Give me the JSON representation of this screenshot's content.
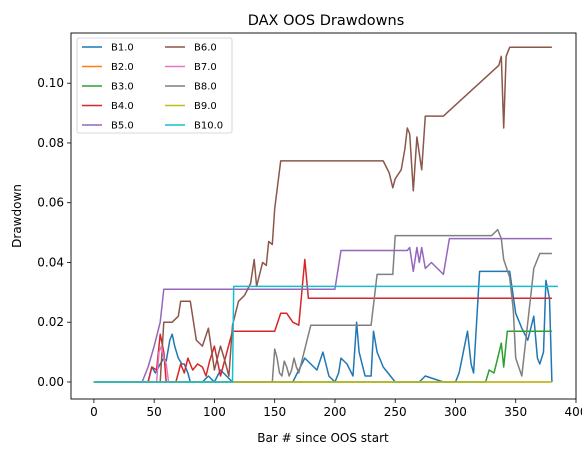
{
  "chart_data": {
    "type": "line",
    "title": "DAX OOS Drawdowns",
    "xlabel": "Bar # since OOS start",
    "ylabel": "Drawdown",
    "xlim": [
      -19,
      400
    ],
    "ylim": [
      -0.0057,
      0.1168
    ],
    "xticks": [
      0,
      50,
      100,
      150,
      200,
      250,
      300,
      350,
      400
    ],
    "xtick_labels": [
      "0",
      "50",
      "100",
      "150",
      "200",
      "250",
      "300",
      "350",
      "400"
    ],
    "yticks": [
      0.0,
      0.02,
      0.04,
      0.06,
      0.08,
      0.1
    ],
    "ytick_labels": [
      "0.00",
      "0.02",
      "0.04",
      "0.06",
      "0.08",
      "0.10"
    ],
    "grid": false,
    "legend_position": "upper-left",
    "legend_columns": 2,
    "series": [
      {
        "name": "B1.0",
        "color": "#1f77b4",
        "x": [
          0,
          45,
          48,
          51,
          55,
          58,
          60,
          63,
          65,
          67,
          70,
          73,
          75,
          78,
          80,
          90,
          95,
          100,
          105,
          115,
          150,
          165,
          170,
          175,
          180,
          185,
          190,
          195,
          200,
          203,
          205,
          210,
          215,
          218,
          220,
          225,
          230,
          232,
          235,
          240,
          250,
          270,
          275,
          290,
          300,
          303,
          305,
          308,
          310,
          313,
          315,
          320,
          330,
          340,
          345,
          350,
          355,
          360,
          365,
          368,
          370,
          373,
          375,
          378,
          380
        ],
        "y": [
          0,
          0,
          0.005,
          0.003,
          0.006,
          0.008,
          0.007,
          0.014,
          0.016,
          0.012,
          0.008,
          0.006,
          0.006,
          0.003,
          0,
          0,
          0.002,
          0,
          0.004,
          0,
          0,
          0,
          0.004,
          0.008,
          0.006,
          0.004,
          0.01,
          0.002,
          0,
          0.003,
          0.008,
          0.006,
          0.002,
          0.02,
          0.01,
          0.002,
          0.002,
          0.017,
          0.01,
          0.005,
          0,
          0,
          0.002,
          0,
          0,
          0.003,
          0.007,
          0.013,
          0.017,
          0.006,
          0.003,
          0.037,
          0.037,
          0.037,
          0.037,
          0.023,
          0.018,
          0.014,
          0.022,
          0.008,
          0.006,
          0.01,
          0.034,
          0.028,
          0
        ]
      },
      {
        "name": "B2.0",
        "color": "#ff7f0e",
        "x": [
          0,
          380
        ],
        "y": [
          0,
          0
        ]
      },
      {
        "name": "B3.0",
        "color": "#2ca02c",
        "x": [
          0,
          325,
          328,
          332,
          335,
          338,
          340,
          343,
          380
        ],
        "y": [
          0,
          0,
          0.004,
          0.003,
          0.008,
          0.013,
          0.005,
          0.017,
          0.017
        ]
      },
      {
        "name": "B4.0",
        "color": "#d62728",
        "x": [
          0,
          45,
          48,
          52,
          55,
          58,
          60,
          68,
          72,
          75,
          78,
          82,
          86,
          90,
          93,
          96,
          100,
          105,
          115,
          150,
          155,
          160,
          165,
          170,
          175,
          178,
          182,
          190,
          340,
          380
        ],
        "y": [
          0,
          0,
          0.005,
          0.004,
          0.016,
          0.01,
          0,
          0,
          0.006,
          0.003,
          0.008,
          0.004,
          0.006,
          0.005,
          0.002,
          0.007,
          0.012,
          0.002,
          0.017,
          0.017,
          0.023,
          0.023,
          0.02,
          0.019,
          0.041,
          0.028,
          0.028,
          0.028,
          0.028,
          0.028
        ]
      },
      {
        "name": "B5.0",
        "color": "#9467bd",
        "x": [
          0,
          40,
          45,
          50,
          55,
          58,
          60,
          65,
          70,
          75,
          80,
          85,
          90,
          95,
          100,
          102,
          105,
          110,
          115,
          120,
          125,
          130,
          135,
          140,
          145,
          150,
          160,
          200,
          205,
          210,
          215,
          220,
          225,
          230,
          235,
          240,
          245,
          250,
          255,
          258,
          260,
          262,
          265,
          268,
          270,
          272,
          275,
          280,
          285,
          290,
          295,
          300,
          305,
          310,
          315,
          320,
          325,
          330,
          335,
          340,
          345,
          350,
          355,
          360,
          365,
          370,
          375,
          380
        ],
        "y": [
          0,
          0,
          0.005,
          0.012,
          0.02,
          0.031,
          0.031,
          0.031,
          0.031,
          0.031,
          0.031,
          0.031,
          0.031,
          0.031,
          0.031,
          0.031,
          0.031,
          0.031,
          0.031,
          0.031,
          0.031,
          0.031,
          0.031,
          0.031,
          0.031,
          0.031,
          0.031,
          0.031,
          0.044,
          0.044,
          0.044,
          0.044,
          0.044,
          0.044,
          0.044,
          0.044,
          0.044,
          0.044,
          0.044,
          0.044,
          0.044,
          0.045,
          0.037,
          0.045,
          0.04,
          0.045,
          0.038,
          0.04,
          0.038,
          0.036,
          0.048,
          0.048,
          0.048,
          0.048,
          0.048,
          0.048,
          0.048,
          0.048,
          0.048,
          0.048,
          0.048,
          0.048,
          0.048,
          0.048,
          0.048,
          0.048,
          0.048,
          0.048
        ]
      },
      {
        "name": "B6.0",
        "color": "#8c564b",
        "x": [
          0,
          55,
          58,
          60,
          65,
          70,
          72,
          75,
          80,
          85,
          90,
          95,
          100,
          105,
          108,
          112,
          115,
          120,
          125,
          130,
          133,
          135,
          140,
          143,
          145,
          148,
          150,
          155,
          200,
          240,
          245,
          248,
          250,
          255,
          258,
          260,
          262,
          265,
          268,
          272,
          275,
          280,
          285,
          290,
          336,
          338,
          340,
          342,
          345,
          348,
          350,
          380
        ],
        "y": [
          0,
          0,
          0.02,
          0.02,
          0.02,
          0.022,
          0.027,
          0.027,
          0.027,
          0.014,
          0.012,
          0.018,
          0.004,
          0.012,
          0.008,
          0.002,
          0.019,
          0.027,
          0.029,
          0.033,
          0.041,
          0.032,
          0.04,
          0.039,
          0.047,
          0.046,
          0.058,
          0.074,
          0.074,
          0.074,
          0.07,
          0.065,
          0.068,
          0.071,
          0.078,
          0.085,
          0.083,
          0.064,
          0.082,
          0.071,
          0.089,
          0.089,
          0.089,
          0.089,
          0.106,
          0.109,
          0.085,
          0.109,
          0.112,
          0.112,
          0.112,
          0.112
        ]
      },
      {
        "name": "B7.0",
        "color": "#e377c2",
        "x": [
          0,
          52,
          54,
          56,
          58,
          60,
          62,
          64
        ],
        "y": [
          0,
          0,
          0.01,
          0.012,
          0.008,
          0.006,
          0,
          0
        ]
      },
      {
        "name": "B8.0",
        "color": "#7f7f7f",
        "x": [
          0,
          148,
          150,
          152,
          154,
          156,
          158,
          160,
          162,
          164,
          166,
          168,
          170,
          180,
          185,
          190,
          195,
          200,
          205,
          210,
          230,
          235,
          240,
          245,
          248,
          250,
          255,
          258,
          260,
          262,
          265,
          268,
          270,
          275,
          280,
          285,
          290,
          295,
          300,
          305,
          310,
          315,
          320,
          330,
          335,
          338,
          340,
          345,
          348,
          350,
          355,
          360,
          365,
          370,
          375,
          380
        ],
        "y": [
          0,
          0,
          0.011,
          0.008,
          0.003,
          0.002,
          0.007,
          0.005,
          0.002,
          0.004,
          0.008,
          0.005,
          0.003,
          0.019,
          0.019,
          0.019,
          0.019,
          0.019,
          0.019,
          0.019,
          0.019,
          0.036,
          0.036,
          0.036,
          0.036,
          0.049,
          0.049,
          0.049,
          0.049,
          0.049,
          0.049,
          0.049,
          0.049,
          0.049,
          0.049,
          0.049,
          0.049,
          0.049,
          0.049,
          0.049,
          0.049,
          0.049,
          0.049,
          0.049,
          0.051,
          0.048,
          0.041,
          0.035,
          0.024,
          0.008,
          0.002,
          0.02,
          0.038,
          0.043,
          0.043,
          0.043
        ]
      },
      {
        "name": "B9.0",
        "color": "#bcbd22",
        "x": [
          0,
          380
        ],
        "y": [
          0,
          0
        ]
      },
      {
        "name": "B10.0",
        "color": "#17becf",
        "x": [
          0,
          115,
          116,
          120,
          150,
          200,
          250,
          300,
          350,
          385
        ],
        "y": [
          0,
          0,
          0.032,
          0.032,
          0.032,
          0.032,
          0.032,
          0.032,
          0.032,
          0.032
        ]
      }
    ]
  }
}
